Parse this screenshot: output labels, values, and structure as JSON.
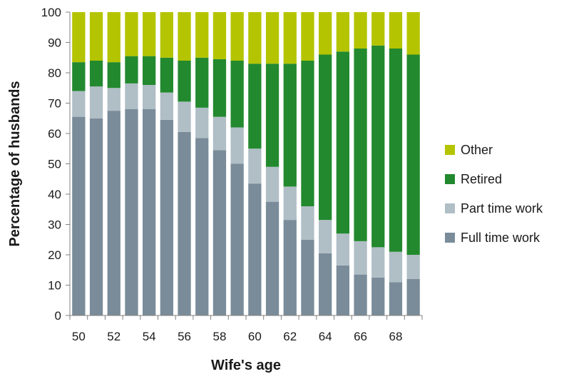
{
  "chart_data": {
    "type": "bar",
    "stacked": true,
    "xlabel": "Wife's age",
    "ylabel": "Percentage of husbands",
    "ylim": [
      0,
      100
    ],
    "yticks": [
      0,
      10,
      20,
      30,
      40,
      50,
      60,
      70,
      80,
      90,
      100
    ],
    "categories": [
      50,
      51,
      52,
      53,
      54,
      55,
      56,
      57,
      58,
      59,
      60,
      61,
      62,
      63,
      64,
      65,
      66,
      67,
      68,
      69
    ],
    "xtick_labels": [
      "50",
      "52",
      "54",
      "56",
      "58",
      "60",
      "62",
      "64",
      "66",
      "68"
    ],
    "grid": false,
    "legend_position": "right",
    "series": [
      {
        "name": "Full time work",
        "color": "#7a8c99",
        "values": [
          65.5,
          65,
          67.5,
          68,
          68,
          64.5,
          60.5,
          58.5,
          54.5,
          50,
          43.5,
          37.5,
          31.5,
          25,
          20.5,
          16.5,
          13.5,
          12.5,
          11,
          12
        ]
      },
      {
        "name": "Part time work",
        "color": "#b0bec6",
        "values": [
          8.5,
          10.5,
          7.5,
          8.5,
          8,
          9,
          10,
          10,
          11,
          12,
          11.5,
          11.5,
          11,
          11,
          11,
          10.5,
          11,
          10,
          10,
          8
        ]
      },
      {
        "name": "Retired",
        "color": "#22892e",
        "values": [
          9.5,
          8.5,
          8.5,
          9,
          9.5,
          11.5,
          13.5,
          16.5,
          19,
          22,
          28,
          34,
          40.5,
          48,
          54.5,
          60,
          63.5,
          66.5,
          67,
          66
        ]
      },
      {
        "name": "Other",
        "color": "#b4c400",
        "values": [
          16.5,
          16,
          16.5,
          14.5,
          14.5,
          15,
          16,
          15,
          15.5,
          16,
          17,
          17,
          17,
          16,
          14,
          13,
          12,
          11,
          12,
          14
        ]
      }
    ],
    "legend_order": [
      "Other",
      "Retired",
      "Part time work",
      "Full time work"
    ]
  }
}
